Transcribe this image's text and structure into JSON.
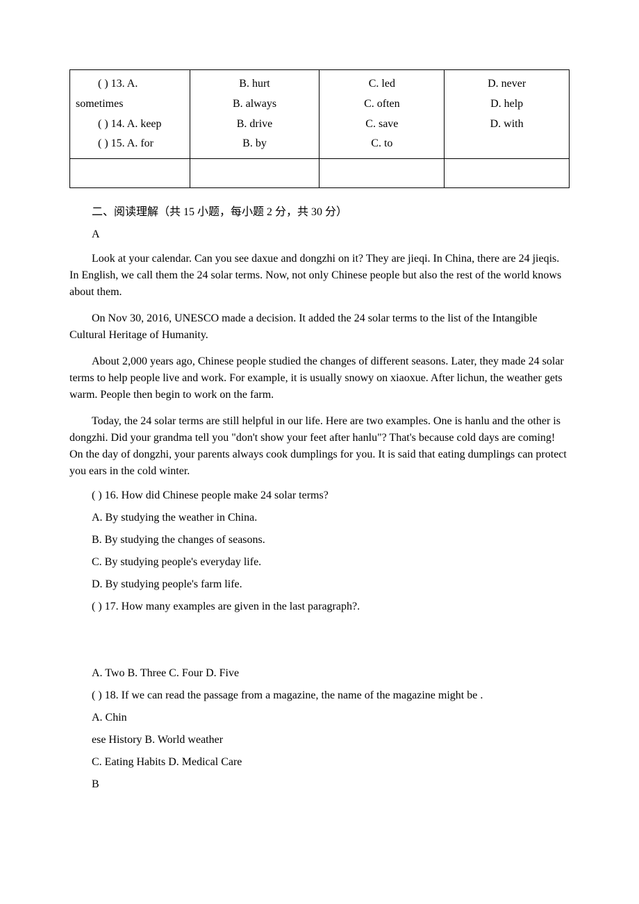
{
  "table": {
    "a_col": [
      "( ) 13. A. sometimes",
      "( ) 14. A. keep",
      "( ) 15. A. for"
    ],
    "b_col": [
      "B. hurt",
      "B. always",
      "B. drive",
      "B. by"
    ],
    "c_col": [
      "C. led",
      "C. often",
      "C. save",
      "C. to"
    ],
    "d_col": [
      "D. never",
      "D. help",
      "D. with"
    ]
  },
  "section_header": "二、阅读理解（共 15 小题，每小题 2 分，共 30 分）",
  "label_a": "A",
  "passage": {
    "p1": "Look at your calendar. Can you see daxue and dongzhi on it? They are jieqi. In China, there are 24 jieqis. In English, we call them the 24 solar terms. Now, not only Chinese people but also the rest of the world knows about them.",
    "p2": "On Nov 30, 2016, UNESCO made a decision. It added the 24 solar terms to the list of the Intangible Cultural Heritage of Humanity.",
    "p3": "About 2,000 years ago, Chinese people studied the changes of different seasons. Later, they made 24 solar terms to help people live and work. For example, it is usually snowy on xiaoxue. After lichun, the weather gets warm. People then begin to work on the farm.",
    "p4": "Today, the 24 solar terms are still helpful in our life. Here are two examples. One is hanlu and the other is dongzhi. Did your grandma tell you \"don't show your feet after hanlu\"? That's because cold days are coming! On the day of dongzhi, your parents always cook dumplings for you. It is said that eating dumplings can protect you ears in the cold winter."
  },
  "q16": {
    "stem": "( ) 16. How did Chinese people make 24 solar terms?",
    "a": " A. By studying the weather in China.",
    "b": "B. By studying the changes of seasons.",
    "c": " C. By studying people's everyday life.",
    "d": "D. By studying people's farm life."
  },
  "q17": {
    "stem": "( ) 17. How many examples are given in the last paragraph?.",
    "options": "A. Two B. Three C. Four D. Five"
  },
  "q18": {
    "stem": "( ) 18. If we can read the passage from a magazine, the name of the magazine might be   .",
    "a": " A. Chin",
    "a2": "ese History B. World weather",
    "c": "C. Eating Habits D. Medical Care"
  },
  "label_b": "B"
}
